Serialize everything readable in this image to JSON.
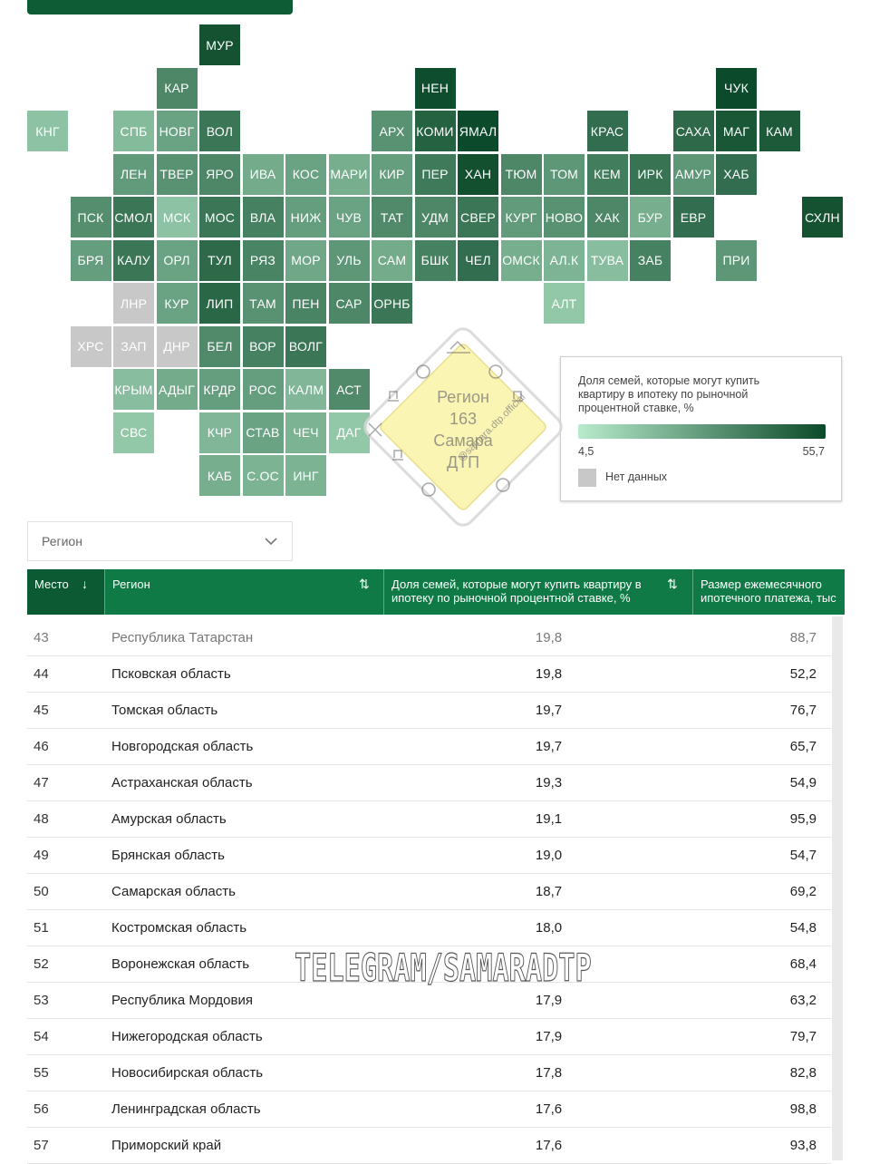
{
  "map": {
    "rows": [
      [
        {
          "c": 4,
          "l": "МУР",
          "s": 0.95
        }
      ],
      [
        {
          "c": 3,
          "l": "КАР",
          "s": 0.62
        },
        {
          "c": 9,
          "l": "НЕН",
          "s": 0.98
        },
        {
          "c": 16,
          "l": "ЧУК",
          "s": 1.0
        }
      ],
      [
        {
          "c": 0,
          "l": "КНГ",
          "s": 0.25
        },
        {
          "c": 2,
          "l": "СПБ",
          "s": 0.3
        },
        {
          "c": 3,
          "l": "НОВГ",
          "s": 0.45
        },
        {
          "c": 4,
          "l": "ВОЛ",
          "s": 0.72
        },
        {
          "c": 8,
          "l": "АРХ",
          "s": 0.55
        },
        {
          "c": 9,
          "l": "КОМИ",
          "s": 0.85
        },
        {
          "c": 10,
          "l": "ЯМАЛ",
          "s": 1.0
        },
        {
          "c": 13,
          "l": "КРАС",
          "s": 0.78
        },
        {
          "c": 15,
          "l": "САХА",
          "s": 0.8
        },
        {
          "c": 16,
          "l": "МАГ",
          "s": 0.92
        },
        {
          "c": 17,
          "l": "КАМ",
          "s": 0.9
        }
      ],
      [
        {
          "c": 2,
          "l": "ЛЕН",
          "s": 0.5
        },
        {
          "c": 3,
          "l": "ТВЕР",
          "s": 0.55
        },
        {
          "c": 4,
          "l": "ЯРО",
          "s": 0.62
        },
        {
          "c": 5,
          "l": "ИВА",
          "s": 0.4
        },
        {
          "c": 6,
          "l": "КОС",
          "s": 0.45
        },
        {
          "c": 7,
          "l": "МАРИ",
          "s": 0.38
        },
        {
          "c": 8,
          "l": "КИР",
          "s": 0.48
        },
        {
          "c": 9,
          "l": "ПЕР",
          "s": 0.7
        },
        {
          "c": 10,
          "l": "ХАН",
          "s": 0.96
        },
        {
          "c": 11,
          "l": "ТЮМ",
          "s": 0.62
        },
        {
          "c": 12,
          "l": "ТОМ",
          "s": 0.52
        },
        {
          "c": 13,
          "l": "КЕМ",
          "s": 0.68
        },
        {
          "c": 14,
          "l": "ИРК",
          "s": 0.74
        },
        {
          "c": 15,
          "l": "АМУР",
          "s": 0.52
        },
        {
          "c": 16,
          "l": "ХАБ",
          "s": 0.78
        }
      ],
      [
        {
          "c": 1,
          "l": "ПСК",
          "s": 0.58
        },
        {
          "c": 2,
          "l": "СМОЛ",
          "s": 0.72
        },
        {
          "c": 3,
          "l": "МСК",
          "s": 0.25
        },
        {
          "c": 4,
          "l": "МОС",
          "s": 0.72
        },
        {
          "c": 5,
          "l": "ВЛА",
          "s": 0.66
        },
        {
          "c": 6,
          "l": "НИЖ",
          "s": 0.48
        },
        {
          "c": 7,
          "l": "ЧУВ",
          "s": 0.45
        },
        {
          "c": 8,
          "l": "ТАТ",
          "s": 0.6
        },
        {
          "c": 9,
          "l": "УДМ",
          "s": 0.62
        },
        {
          "c": 10,
          "l": "СВЕР",
          "s": 0.72
        },
        {
          "c": 11,
          "l": "КУРГ",
          "s": 0.5
        },
        {
          "c": 12,
          "l": "НОВО",
          "s": 0.55
        },
        {
          "c": 13,
          "l": "ХАК",
          "s": 0.62
        },
        {
          "c": 14,
          "l": "БУР",
          "s": 0.38
        },
        {
          "c": 15,
          "l": "ЕВР",
          "s": 0.78
        },
        {
          "c": 18,
          "l": "СХЛН",
          "s": 0.95
        }
      ],
      [
        {
          "c": 1,
          "l": "БРЯ",
          "s": 0.48
        },
        {
          "c": 2,
          "l": "КАЛУ",
          "s": 0.72
        },
        {
          "c": 3,
          "l": "ОРЛ",
          "s": 0.45
        },
        {
          "c": 4,
          "l": "ТУЛ",
          "s": 0.8
        },
        {
          "c": 5,
          "l": "РЯЗ",
          "s": 0.64
        },
        {
          "c": 6,
          "l": "МОР",
          "s": 0.42
        },
        {
          "c": 7,
          "l": "УЛЬ",
          "s": 0.52
        },
        {
          "c": 8,
          "l": "САМ",
          "s": 0.4
        },
        {
          "c": 9,
          "l": "БШК",
          "s": 0.66
        },
        {
          "c": 10,
          "l": "ЧЕЛ",
          "s": 0.78
        },
        {
          "c": 11,
          "l": "ОМСК",
          "s": 0.38
        },
        {
          "c": 12,
          "l": "АЛ.К",
          "s": 0.34
        },
        {
          "c": 13,
          "l": "ТУВА",
          "s": 0.28
        },
        {
          "c": 14,
          "l": "ЗАБ",
          "s": 0.66
        },
        {
          "c": 16,
          "l": "ПРИ",
          "s": 0.52
        }
      ],
      [
        {
          "c": 2,
          "l": "ЛНР",
          "s": -1
        },
        {
          "c": 3,
          "l": "КУР",
          "s": 0.45
        },
        {
          "c": 4,
          "l": "ЛИП",
          "s": 0.82
        },
        {
          "c": 5,
          "l": "ТАМ",
          "s": 0.55
        },
        {
          "c": 6,
          "l": "ПЕН",
          "s": 0.64
        },
        {
          "c": 7,
          "l": "САР",
          "s": 0.62
        },
        {
          "c": 8,
          "l": "ОРНБ",
          "s": 0.72
        },
        {
          "c": 12,
          "l": "АЛТ",
          "s": 0.22
        }
      ],
      [
        {
          "c": 1,
          "l": "ХРС",
          "s": -1
        },
        {
          "c": 2,
          "l": "ЗАП",
          "s": -1
        },
        {
          "c": 3,
          "l": "ДНР",
          "s": -1
        },
        {
          "c": 4,
          "l": "БЕЛ",
          "s": 0.6
        },
        {
          "c": 5,
          "l": "ВОР",
          "s": 0.66
        },
        {
          "c": 6,
          "l": "ВОЛГ",
          "s": 0.72
        }
      ],
      [
        {
          "c": 2,
          "l": "КРЫМ",
          "s": 0.28
        },
        {
          "c": 3,
          "l": "АДЫГ",
          "s": 0.4
        },
        {
          "c": 4,
          "l": "КРДР",
          "s": 0.48
        },
        {
          "c": 5,
          "l": "РОС",
          "s": 0.48
        },
        {
          "c": 6,
          "l": "КАЛМ",
          "s": 0.32
        },
        {
          "c": 7,
          "l": "АСТ",
          "s": 0.6
        }
      ],
      [
        {
          "c": 2,
          "l": "СВС",
          "s": 0.22
        },
        {
          "c": 4,
          "l": "КЧР",
          "s": 0.32
        },
        {
          "c": 5,
          "l": "СТАВ",
          "s": 0.45
        },
        {
          "c": 6,
          "l": "ЧЕЧ",
          "s": 0.35
        },
        {
          "c": 7,
          "l": "ДАГ",
          "s": 0.22
        }
      ],
      [
        {
          "c": 4,
          "l": "КАБ",
          "s": 0.38
        },
        {
          "c": 5,
          "l": "С.ОС",
          "s": 0.35
        },
        {
          "c": 6,
          "l": "ИНГ",
          "s": 0.35
        }
      ]
    ]
  },
  "legend": {
    "title": "Доля семей, которые могут купить квартиру в ипотеку по рыночной процентной ставке, %",
    "min": "4,5",
    "max": "55,7",
    "no_data": "Нет данных",
    "color_low": "#b8ebcc",
    "color_high": "#0b4a2a",
    "color_nodata": "#c8c8c8"
  },
  "filter": {
    "value": "Регион"
  },
  "table": {
    "headers": {
      "rank": "Место",
      "region": "Регион",
      "share": "Доля семей, которые могут купить квартиру в ипотеку по рыночной процентной ставке, %",
      "payment": "Размер ежемесячного ипотечного платежа, тыс"
    },
    "rows": [
      {
        "rank": "43",
        "region": "Республика Татарстан",
        "share": "19,8",
        "payment": "88,7"
      },
      {
        "rank": "44",
        "region": "Псковская область",
        "share": "19,8",
        "payment": "52,2"
      },
      {
        "rank": "45",
        "region": "Томская область",
        "share": "19,7",
        "payment": "76,7"
      },
      {
        "rank": "46",
        "region": "Новгородская область",
        "share": "19,7",
        "payment": "65,7"
      },
      {
        "rank": "47",
        "region": "Астраханская область",
        "share": "19,3",
        "payment": "54,9"
      },
      {
        "rank": "48",
        "region": "Амурская область",
        "share": "19,1",
        "payment": "95,9"
      },
      {
        "rank": "49",
        "region": "Брянская область",
        "share": "19,0",
        "payment": "54,7"
      },
      {
        "rank": "50",
        "region": "Самарская область",
        "share": "18,7",
        "payment": "69,2"
      },
      {
        "rank": "51",
        "region": "Костромская область",
        "share": "18,0",
        "payment": "54,8"
      },
      {
        "rank": "52",
        "region": "Воронежская область",
        "share": "",
        "payment": "68,4"
      },
      {
        "rank": "53",
        "region": "Республика Мордовия",
        "share": "17,9",
        "payment": "63,2"
      },
      {
        "rank": "54",
        "region": "Нижегородская область",
        "share": "17,9",
        "payment": "79,7"
      },
      {
        "rank": "55",
        "region": "Новосибирская область",
        "share": "17,8",
        "payment": "82,8"
      },
      {
        "rank": "56",
        "region": "Ленинградская область",
        "share": "17,6",
        "payment": "98,8"
      },
      {
        "rank": "57",
        "region": "Приморский край",
        "share": "17,6",
        "payment": "93,8"
      }
    ]
  },
  "watermarks": {
    "banner": "TELEGRAM/SAMARADTP",
    "stamp_title": "Регион",
    "stamp_number": "163",
    "stamp_city": "Самара",
    "stamp_sub": "ДТП",
    "stamp_handle": "@samara.dtp.official"
  }
}
